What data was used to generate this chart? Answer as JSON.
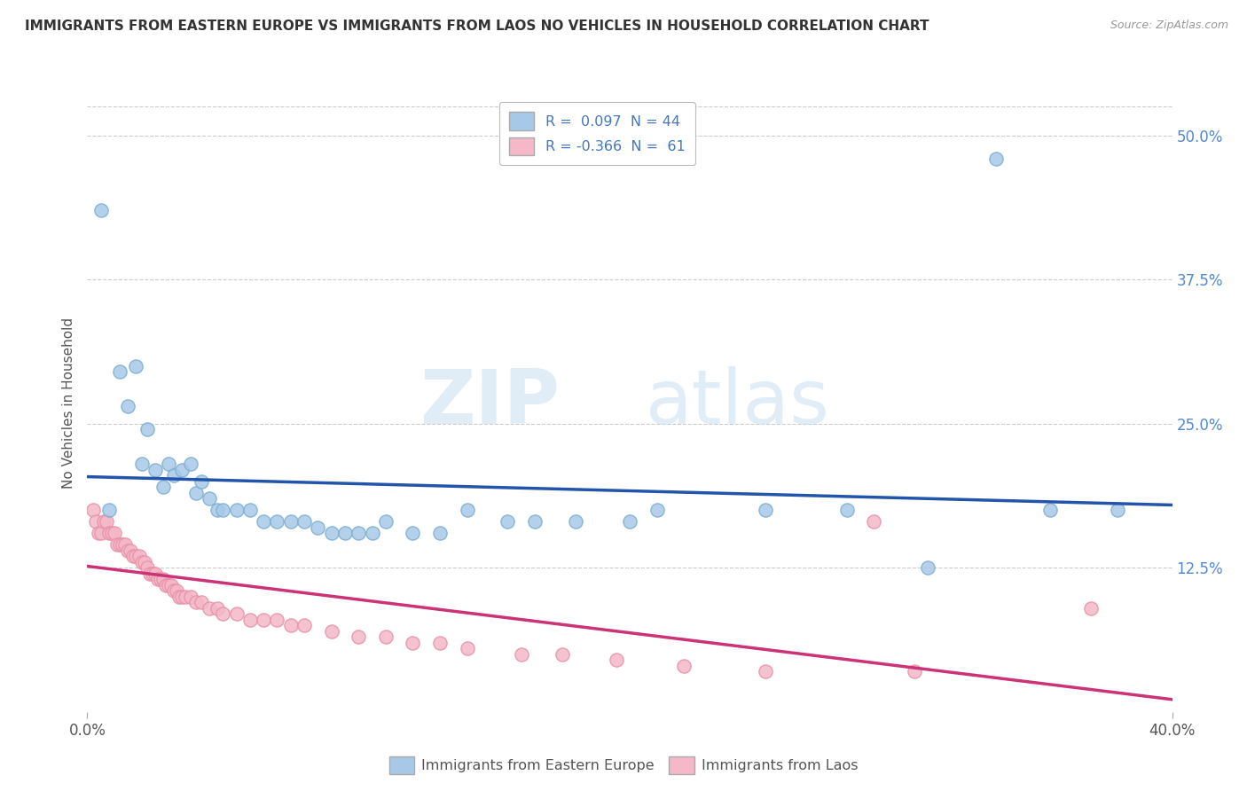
{
  "title": "IMMIGRANTS FROM EASTERN EUROPE VS IMMIGRANTS FROM LAOS NO VEHICLES IN HOUSEHOLD CORRELATION CHART",
  "source": "Source: ZipAtlas.com",
  "ylabel": "No Vehicles in Household",
  "ytick_vals": [
    0.125,
    0.25,
    0.375,
    0.5
  ],
  "ytick_labels": [
    "12.5%",
    "25.0%",
    "37.5%",
    "50.0%"
  ],
  "xlim": [
    0.0,
    0.4
  ],
  "ylim": [
    0.0,
    0.535
  ],
  "legend1_label": "R =  0.097  N = 44",
  "legend2_label": "R = -0.366  N =  61",
  "legend_bottom_left": "Immigrants from Eastern Europe",
  "legend_bottom_right": "Immigrants from Laos",
  "watermark_zip": "ZIP",
  "watermark_atlas": "atlas",
  "blue_color": "#a8c8e8",
  "blue_edge_color": "#7aaed0",
  "pink_color": "#f4b8c8",
  "pink_edge_color": "#e890a8",
  "blue_line_color": "#2255aa",
  "pink_line_color": "#cc3377",
  "blue_scatter": [
    [
      0.005,
      0.435
    ],
    [
      0.008,
      0.175
    ],
    [
      0.012,
      0.295
    ],
    [
      0.015,
      0.265
    ],
    [
      0.018,
      0.3
    ],
    [
      0.02,
      0.215
    ],
    [
      0.022,
      0.245
    ],
    [
      0.025,
      0.21
    ],
    [
      0.028,
      0.195
    ],
    [
      0.03,
      0.215
    ],
    [
      0.032,
      0.205
    ],
    [
      0.035,
      0.21
    ],
    [
      0.038,
      0.215
    ],
    [
      0.04,
      0.19
    ],
    [
      0.042,
      0.2
    ],
    [
      0.045,
      0.185
    ],
    [
      0.048,
      0.175
    ],
    [
      0.05,
      0.175
    ],
    [
      0.055,
      0.175
    ],
    [
      0.06,
      0.175
    ],
    [
      0.065,
      0.165
    ],
    [
      0.07,
      0.165
    ],
    [
      0.075,
      0.165
    ],
    [
      0.08,
      0.165
    ],
    [
      0.085,
      0.16
    ],
    [
      0.09,
      0.155
    ],
    [
      0.095,
      0.155
    ],
    [
      0.1,
      0.155
    ],
    [
      0.105,
      0.155
    ],
    [
      0.11,
      0.165
    ],
    [
      0.12,
      0.155
    ],
    [
      0.13,
      0.155
    ],
    [
      0.14,
      0.175
    ],
    [
      0.155,
      0.165
    ],
    [
      0.165,
      0.165
    ],
    [
      0.18,
      0.165
    ],
    [
      0.2,
      0.165
    ],
    [
      0.21,
      0.175
    ],
    [
      0.25,
      0.175
    ],
    [
      0.28,
      0.175
    ],
    [
      0.31,
      0.125
    ],
    [
      0.335,
      0.48
    ],
    [
      0.355,
      0.175
    ],
    [
      0.38,
      0.175
    ]
  ],
  "pink_scatter": [
    [
      0.002,
      0.175
    ],
    [
      0.003,
      0.165
    ],
    [
      0.004,
      0.155
    ],
    [
      0.005,
      0.155
    ],
    [
      0.006,
      0.165
    ],
    [
      0.007,
      0.165
    ],
    [
      0.008,
      0.155
    ],
    [
      0.009,
      0.155
    ],
    [
      0.01,
      0.155
    ],
    [
      0.011,
      0.145
    ],
    [
      0.012,
      0.145
    ],
    [
      0.013,
      0.145
    ],
    [
      0.014,
      0.145
    ],
    [
      0.015,
      0.14
    ],
    [
      0.016,
      0.14
    ],
    [
      0.017,
      0.135
    ],
    [
      0.018,
      0.135
    ],
    [
      0.019,
      0.135
    ],
    [
      0.02,
      0.13
    ],
    [
      0.021,
      0.13
    ],
    [
      0.022,
      0.125
    ],
    [
      0.023,
      0.12
    ],
    [
      0.024,
      0.12
    ],
    [
      0.025,
      0.12
    ],
    [
      0.026,
      0.115
    ],
    [
      0.027,
      0.115
    ],
    [
      0.028,
      0.115
    ],
    [
      0.029,
      0.11
    ],
    [
      0.03,
      0.11
    ],
    [
      0.031,
      0.11
    ],
    [
      0.032,
      0.105
    ],
    [
      0.033,
      0.105
    ],
    [
      0.034,
      0.1
    ],
    [
      0.035,
      0.1
    ],
    [
      0.036,
      0.1
    ],
    [
      0.038,
      0.1
    ],
    [
      0.04,
      0.095
    ],
    [
      0.042,
      0.095
    ],
    [
      0.045,
      0.09
    ],
    [
      0.048,
      0.09
    ],
    [
      0.05,
      0.085
    ],
    [
      0.055,
      0.085
    ],
    [
      0.06,
      0.08
    ],
    [
      0.065,
      0.08
    ],
    [
      0.07,
      0.08
    ],
    [
      0.075,
      0.075
    ],
    [
      0.08,
      0.075
    ],
    [
      0.09,
      0.07
    ],
    [
      0.1,
      0.065
    ],
    [
      0.11,
      0.065
    ],
    [
      0.12,
      0.06
    ],
    [
      0.13,
      0.06
    ],
    [
      0.14,
      0.055
    ],
    [
      0.16,
      0.05
    ],
    [
      0.175,
      0.05
    ],
    [
      0.195,
      0.045
    ],
    [
      0.22,
      0.04
    ],
    [
      0.25,
      0.035
    ],
    [
      0.29,
      0.165
    ],
    [
      0.305,
      0.035
    ],
    [
      0.37,
      0.09
    ]
  ]
}
